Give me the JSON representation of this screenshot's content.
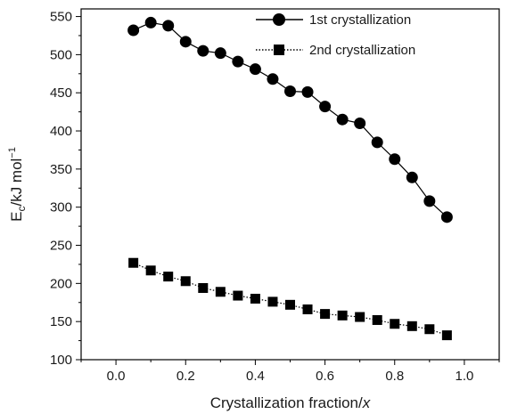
{
  "chart_data": {
    "type": "scatter",
    "xlabel": "Crystallization fraction/",
    "xlabel_var": "x",
    "ylabel_main": "E",
    "ylabel_sub": "c",
    "ylabel_unit": "/kJ mol",
    "ylabel_sup": "−1",
    "xlim": [
      -0.1,
      1.1
    ],
    "ylim": [
      100,
      560
    ],
    "xticks": [
      0.0,
      0.2,
      0.4,
      0.6,
      0.8,
      1.0
    ],
    "xtick_labels": [
      "0.0",
      "0.2",
      "0.4",
      "0.6",
      "0.8",
      "1.0"
    ],
    "yticks": [
      100,
      150,
      200,
      250,
      300,
      350,
      400,
      450,
      500,
      550
    ],
    "ytick_labels": [
      "100",
      "150",
      "200",
      "250",
      "300",
      "350",
      "400",
      "450",
      "500",
      "550"
    ],
    "legend_position": "top-right",
    "grid": false,
    "series": [
      {
        "name": "1st crystallization",
        "marker": "circle",
        "line_style": "solid",
        "color": "#000000",
        "x": [
          0.05,
          0.1,
          0.15,
          0.2,
          0.25,
          0.3,
          0.35,
          0.4,
          0.45,
          0.5,
          0.55,
          0.6,
          0.65,
          0.7,
          0.75,
          0.8,
          0.85,
          0.9,
          0.95
        ],
        "y": [
          532,
          542,
          538,
          517,
          505,
          502,
          491,
          481,
          468,
          452,
          451,
          432,
          415,
          410,
          385,
          363,
          339,
          308,
          287
        ]
      },
      {
        "name": "2nd crystallization",
        "marker": "square",
        "line_style": "dotted",
        "color": "#000000",
        "x": [
          0.05,
          0.1,
          0.15,
          0.2,
          0.25,
          0.3,
          0.35,
          0.4,
          0.45,
          0.5,
          0.55,
          0.6,
          0.65,
          0.7,
          0.75,
          0.8,
          0.85,
          0.9,
          0.95
        ],
        "y": [
          227,
          217,
          209,
          203,
          194,
          189,
          184,
          180,
          176,
          172,
          166,
          160,
          158,
          156,
          152,
          147,
          144,
          140,
          132
        ]
      }
    ]
  }
}
